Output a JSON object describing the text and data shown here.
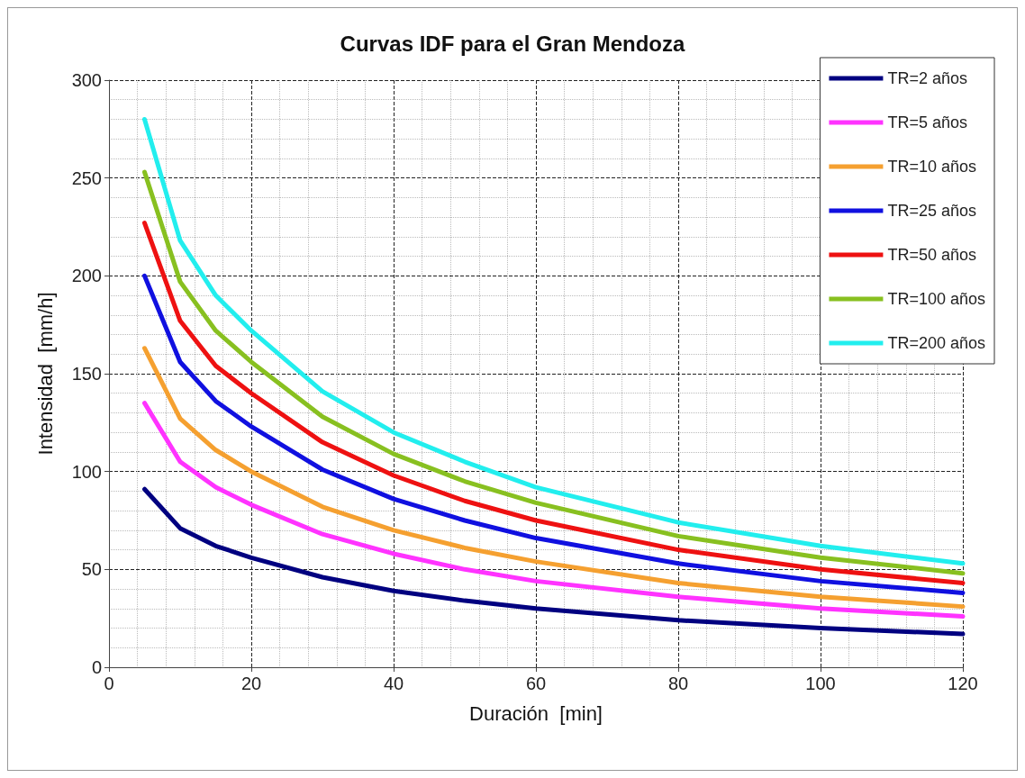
{
  "chart_data": {
    "type": "line",
    "title": "Curvas IDF para el Gran Mendoza",
    "xlabel": "Duración  [min]",
    "ylabel": "Intensidad  [mm/h]",
    "x": [
      5,
      10,
      15,
      20,
      30,
      40,
      50,
      60,
      80,
      100,
      120
    ],
    "series": [
      {
        "name": "TR=2 años",
        "color": "#000080",
        "values": [
          91,
          71,
          62,
          56,
          46,
          39,
          34,
          30,
          24,
          20,
          17
        ]
      },
      {
        "name": "TR=5 años",
        "color": "#ff33ff",
        "values": [
          135,
          105,
          92,
          83,
          68,
          58,
          50,
          44,
          36,
          30,
          26
        ]
      },
      {
        "name": "TR=10 años",
        "color": "#f5a030",
        "values": [
          163,
          127,
          111,
          100,
          82,
          70,
          61,
          54,
          43,
          36,
          31
        ]
      },
      {
        "name": "TR=25 años",
        "color": "#1010e0",
        "values": [
          200,
          156,
          136,
          123,
          101,
          86,
          75,
          66,
          53,
          44,
          38
        ]
      },
      {
        "name": "TR=50 años",
        "color": "#ee1111",
        "values": [
          227,
          177,
          154,
          140,
          115,
          98,
          85,
          75,
          60,
          50,
          43
        ]
      },
      {
        "name": "TR=100 años",
        "color": "#88c020",
        "values": [
          253,
          197,
          172,
          156,
          128,
          109,
          95,
          84,
          67,
          56,
          48
        ]
      },
      {
        "name": "TR=200 años",
        "color": "#22eeee",
        "values": [
          280,
          218,
          190,
          172,
          141,
          120,
          105,
          92,
          74,
          62,
          53
        ]
      }
    ],
    "xlim": [
      0,
      120
    ],
    "xticks": [
      0,
      20,
      40,
      60,
      80,
      100,
      120
    ],
    "ylim": [
      0,
      300
    ],
    "yticks": [
      0,
      50,
      100,
      150,
      200,
      250,
      300
    ],
    "grid": true,
    "legend": "top right",
    "marker": "none",
    "line_style": "solid"
  }
}
